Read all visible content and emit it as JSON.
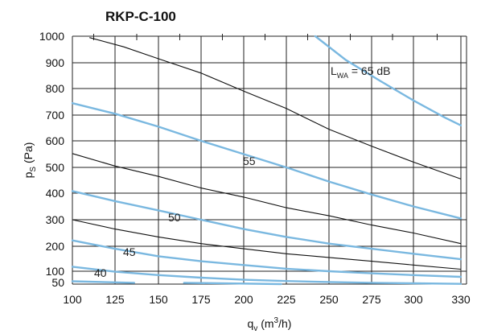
{
  "chart_data": {
    "type": "line",
    "title": "RKP-C-100",
    "xlabel": {
      "main": "q",
      "sub": "v",
      "unit": "(m",
      "sup": "3",
      "tail": "/h)"
    },
    "ylabel": {
      "main": "p",
      "sub": "S",
      "unit": "(Pa)"
    },
    "xlim": [
      100,
      330
    ],
    "ylim": [
      50,
      1000
    ],
    "x_ticks": [
      "100",
      "125",
      "150",
      "175",
      "200",
      "225",
      "250",
      "275",
      "300",
      "330"
    ],
    "y_ticks": [
      "50",
      "100",
      "200",
      "300",
      "400",
      "500",
      "600",
      "700",
      "800",
      "900",
      "1000"
    ],
    "grid": true,
    "sound_curves": [
      {
        "label": "65",
        "x": [
          242,
          260,
          280,
          300,
          320,
          330
        ],
        "y": [
          1000,
          910,
          830,
          755,
          690,
          660
        ]
      },
      {
        "label": "55",
        "x": [
          100,
          125,
          150,
          175,
          200,
          225,
          250,
          275,
          300,
          330
        ],
        "y": [
          745,
          705,
          655,
          600,
          550,
          500,
          445,
          395,
          350,
          305
        ]
      },
      {
        "label": "50",
        "x": [
          100,
          125,
          150,
          175,
          200,
          225,
          250,
          275,
          300,
          330
        ],
        "y": [
          408,
          370,
          335,
          300,
          265,
          235,
          210,
          190,
          170,
          148
        ]
      },
      {
        "label": "45",
        "x": [
          100,
          125,
          150,
          175,
          200,
          225,
          250,
          275,
          300,
          330
        ],
        "y": [
          222,
          190,
          160,
          140,
          125,
          110,
          100,
          92,
          85,
          78
        ]
      },
      {
        "label": "40",
        "x": [
          100,
          125,
          150,
          175,
          200,
          225,
          250,
          275,
          300,
          330
        ],
        "y": [
          118,
          98,
          85,
          75,
          67,
          62,
          58,
          55,
          53,
          51
        ]
      },
      {
        "label": "",
        "x": [
          100,
          136
        ],
        "y": [
          61,
          55
        ]
      },
      {
        "label": "",
        "x": [
          165,
          222
        ],
        "y": [
          55,
          50
        ]
      }
    ],
    "system_curves": [
      {
        "x": [
          110,
          130,
          150,
          175,
          200,
          225,
          250,
          275,
          300,
          330
        ],
        "y": [
          995,
          960,
          915,
          860,
          790,
          725,
          645,
          580,
          520,
          455
        ]
      },
      {
        "x": [
          100,
          125,
          150,
          175,
          200,
          225,
          250,
          275,
          300,
          330
        ],
        "y": [
          552,
          505,
          465,
          420,
          385,
          345,
          315,
          280,
          250,
          210
        ]
      },
      {
        "x": [
          100,
          125,
          150,
          175,
          200,
          225,
          250,
          275,
          300,
          330
        ],
        "y": [
          300,
          265,
          235,
          210,
          190,
          170,
          155,
          140,
          125,
          108
        ]
      }
    ],
    "annotations": [
      {
        "text": "L",
        "sub": "WA",
        "tail": " = 65 dB"
      },
      {
        "text": "55"
      },
      {
        "text": "50"
      },
      {
        "text": "45"
      },
      {
        "text": "40"
      }
    ],
    "colors": {
      "sound": "#7ab8e0",
      "system": "#111111",
      "grid": "#222222"
    }
  }
}
